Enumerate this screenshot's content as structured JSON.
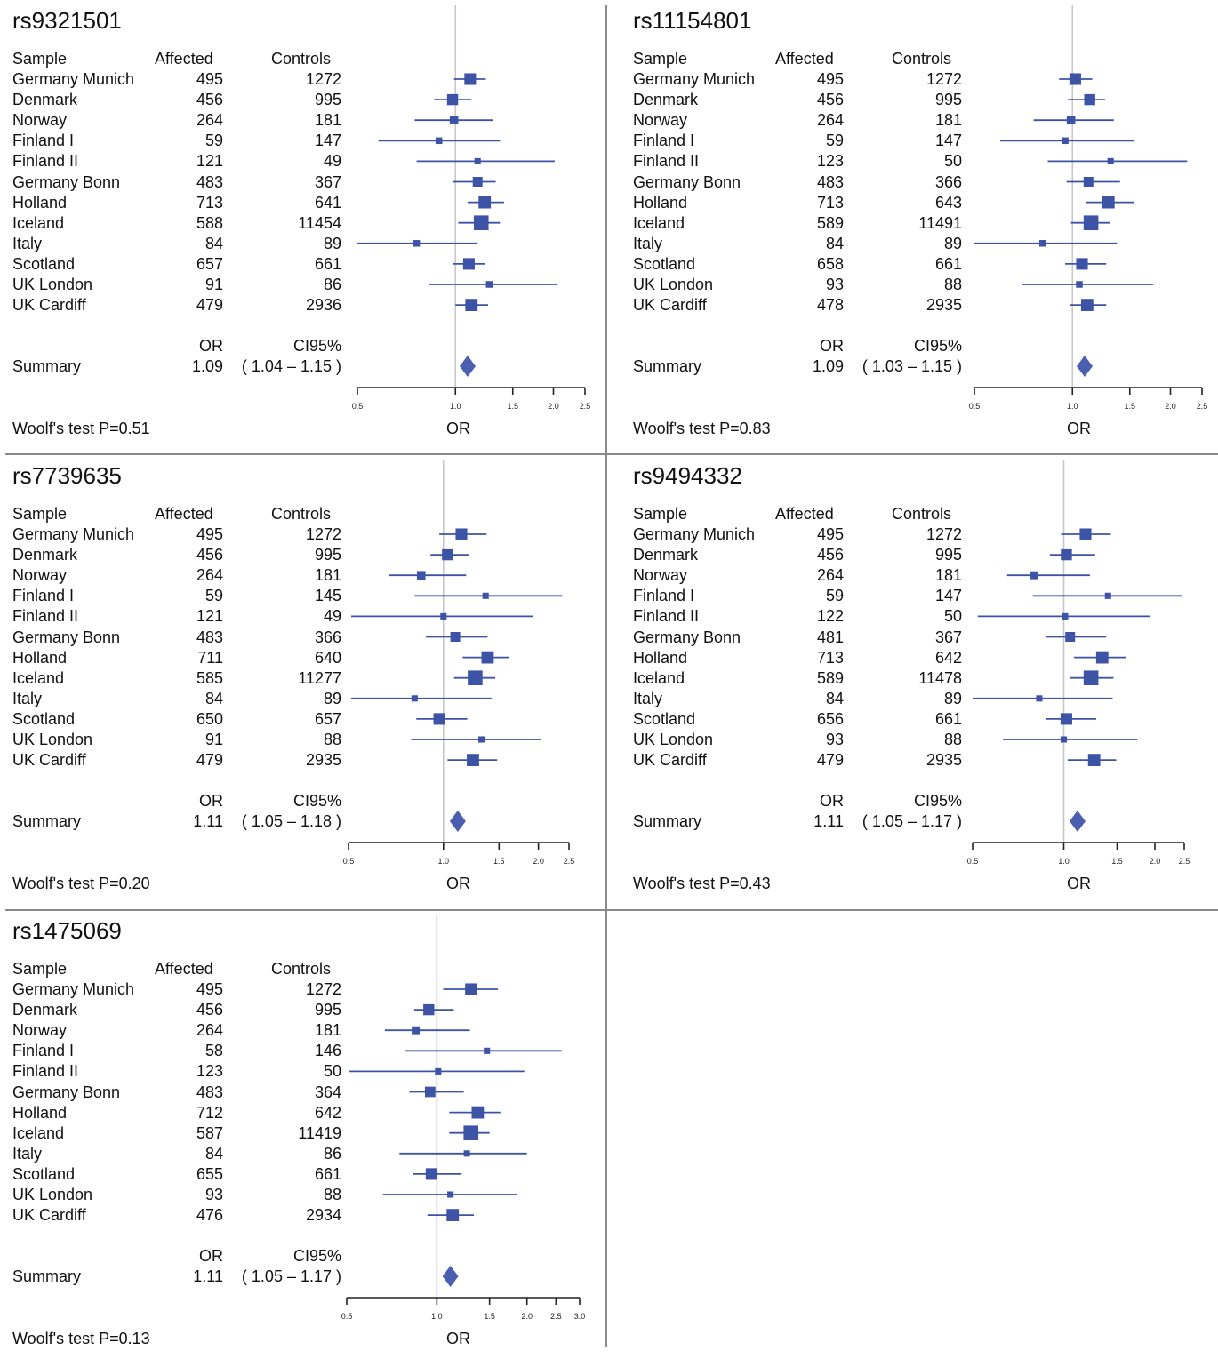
{
  "labels": {
    "sample": "Sample",
    "affected": "Affected",
    "controls": "Controls",
    "or": "OR",
    "ci": "CI95%",
    "summary": "Summary",
    "xlabel": "OR"
  },
  "chart_data": [
    {
      "type": "forest",
      "snp": "rs9321501",
      "woolf": "Woolf's test P=0.51",
      "ticks": [
        "0.5",
        "1.0",
        "1.5",
        "2.0",
        "2.5"
      ],
      "tick_values": [
        0.5,
        1.0,
        1.5,
        2.0,
        2.5
      ],
      "xlim": [
        0.5,
        2.5
      ],
      "log_scale": true,
      "rows": [
        {
          "sample": "Germany Munich",
          "affected": "495",
          "controls": "1272",
          "or": 1.11,
          "lo": 0.99,
          "hi": 1.24,
          "weight": 0.65
        },
        {
          "sample": "Denmark",
          "affected": "456",
          "controls": "995",
          "or": 0.98,
          "lo": 0.86,
          "hi": 1.12,
          "weight": 0.6
        },
        {
          "sample": "Norway",
          "affected": "264",
          "controls": "181",
          "or": 0.99,
          "lo": 0.75,
          "hi": 1.3,
          "weight": 0.4
        },
        {
          "sample": "Finland I",
          "affected": "59",
          "controls": "147",
          "or": 0.89,
          "lo": 0.58,
          "hi": 1.37,
          "weight": 0.25
        },
        {
          "sample": "Finland II",
          "affected": "121",
          "controls": "49",
          "or": 1.17,
          "lo": 0.76,
          "hi": 2.02,
          "weight": 0.22
        },
        {
          "sample": "Germany Bonn",
          "affected": "483",
          "controls": "367",
          "or": 1.17,
          "lo": 0.98,
          "hi": 1.33,
          "weight": 0.5
        },
        {
          "sample": "Holland",
          "affected": "713",
          "controls": "641",
          "or": 1.23,
          "lo": 1.09,
          "hi": 1.41,
          "weight": 0.7
        },
        {
          "sample": "Iceland",
          "affected": "588",
          "controls": "11454",
          "or": 1.2,
          "lo": 1.02,
          "hi": 1.37,
          "weight": 0.9
        },
        {
          "sample": "Italy",
          "affected": "84",
          "controls": "89",
          "or": 0.76,
          "lo": 0.5,
          "hi": 1.17,
          "weight": 0.25
        },
        {
          "sample": "Scotland",
          "affected": "657",
          "controls": "661",
          "or": 1.1,
          "lo": 0.98,
          "hi": 1.23,
          "weight": 0.65
        },
        {
          "sample": "UK London",
          "affected": "91",
          "controls": "86",
          "or": 1.27,
          "lo": 0.83,
          "hi": 2.06,
          "weight": 0.25
        },
        {
          "sample": "UK Cardiff",
          "affected": "479",
          "controls": "2936",
          "or": 1.12,
          "lo": 1.0,
          "hi": 1.26,
          "weight": 0.7
        }
      ],
      "summary": {
        "or": "1.09",
        "ci": "( 1.04 – 1.15 )",
        "or_value": 1.09,
        "lo": 1.04,
        "hi": 1.15
      }
    },
    {
      "type": "forest",
      "snp": "rs11154801",
      "woolf": "Woolf's test P=0.83",
      "ticks": [
        "0.5",
        "1.0",
        "1.5",
        "2.0",
        "2.5"
      ],
      "tick_values": [
        0.5,
        1.0,
        1.5,
        2.0,
        2.5
      ],
      "xlim": [
        0.5,
        2.5
      ],
      "log_scale": true,
      "rows": [
        {
          "sample": "Germany Munich",
          "affected": "495",
          "controls": "1272",
          "or": 1.02,
          "lo": 0.91,
          "hi": 1.15,
          "weight": 0.65
        },
        {
          "sample": "Denmark",
          "affected": "456",
          "controls": "995",
          "or": 1.13,
          "lo": 0.97,
          "hi": 1.26,
          "weight": 0.6
        },
        {
          "sample": "Norway",
          "affected": "264",
          "controls": "181",
          "or": 0.99,
          "lo": 0.76,
          "hi": 1.34,
          "weight": 0.4
        },
        {
          "sample": "Finland I",
          "affected": "59",
          "controls": "147",
          "or": 0.95,
          "lo": 0.6,
          "hi": 1.55,
          "weight": 0.25
        },
        {
          "sample": "Finland II",
          "affected": "123",
          "controls": "50",
          "or": 1.31,
          "lo": 0.84,
          "hi": 2.25,
          "weight": 0.22
        },
        {
          "sample": "Germany Bonn",
          "affected": "483",
          "controls": "366",
          "or": 1.12,
          "lo": 0.96,
          "hi": 1.4,
          "weight": 0.5
        },
        {
          "sample": "Holland",
          "affected": "713",
          "controls": "643",
          "or": 1.29,
          "lo": 1.1,
          "hi": 1.55,
          "weight": 0.7
        },
        {
          "sample": "Iceland",
          "affected": "589",
          "controls": "11491",
          "or": 1.14,
          "lo": 0.99,
          "hi": 1.3,
          "weight": 0.9
        },
        {
          "sample": "Italy",
          "affected": "84",
          "controls": "89",
          "or": 0.81,
          "lo": 0.5,
          "hi": 1.37,
          "weight": 0.25
        },
        {
          "sample": "Scotland",
          "affected": "658",
          "controls": "661",
          "or": 1.07,
          "lo": 0.95,
          "hi": 1.27,
          "weight": 0.65
        },
        {
          "sample": "UK London",
          "affected": "93",
          "controls": "88",
          "or": 1.05,
          "lo": 0.7,
          "hi": 1.77,
          "weight": 0.25
        },
        {
          "sample": "UK Cardiff",
          "affected": "478",
          "controls": "2935",
          "or": 1.11,
          "lo": 0.98,
          "hi": 1.27,
          "weight": 0.7
        }
      ],
      "summary": {
        "or": "1.09",
        "ci": "( 1.03 – 1.15 )",
        "or_value": 1.09,
        "lo": 1.03,
        "hi": 1.15
      }
    },
    {
      "type": "forest",
      "snp": "rs7739635",
      "woolf": "Woolf's test P=0.20",
      "ticks": [
        "0.5",
        "1.0",
        "1.5",
        "2.0",
        "2.5"
      ],
      "tick_values": [
        0.5,
        1.0,
        1.5,
        2.0,
        2.5
      ],
      "xlim": [
        0.5,
        2.5
      ],
      "log_scale": true,
      "rows": [
        {
          "sample": "Germany Munich",
          "affected": "495",
          "controls": "1272",
          "or": 1.14,
          "lo": 0.97,
          "hi": 1.37,
          "weight": 0.65
        },
        {
          "sample": "Denmark",
          "affected": "456",
          "controls": "995",
          "or": 1.03,
          "lo": 0.91,
          "hi": 1.2,
          "weight": 0.6
        },
        {
          "sample": "Norway",
          "affected": "264",
          "controls": "181",
          "or": 0.85,
          "lo": 0.67,
          "hi": 1.18,
          "weight": 0.4
        },
        {
          "sample": "Finland I",
          "affected": "59",
          "controls": "145",
          "or": 1.36,
          "lo": 0.81,
          "hi": 2.38,
          "weight": 0.22
        },
        {
          "sample": "Finland II",
          "affected": "121",
          "controls": "49",
          "or": 1.0,
          "lo": 0.51,
          "hi": 1.92,
          "weight": 0.22
        },
        {
          "sample": "Germany Bonn",
          "affected": "483",
          "controls": "366",
          "or": 1.09,
          "lo": 0.88,
          "hi": 1.38,
          "weight": 0.5
        },
        {
          "sample": "Holland",
          "affected": "711",
          "controls": "640",
          "or": 1.38,
          "lo": 1.15,
          "hi": 1.61,
          "weight": 0.7
        },
        {
          "sample": "Iceland",
          "affected": "585",
          "controls": "11277",
          "or": 1.26,
          "lo": 1.08,
          "hi": 1.46,
          "weight": 0.9
        },
        {
          "sample": "Italy",
          "affected": "84",
          "controls": "89",
          "or": 0.81,
          "lo": 0.51,
          "hi": 1.42,
          "weight": 0.22
        },
        {
          "sample": "Scotland",
          "affected": "650",
          "controls": "657",
          "or": 0.97,
          "lo": 0.82,
          "hi": 1.19,
          "weight": 0.65
        },
        {
          "sample": "UK London",
          "affected": "91",
          "controls": "88",
          "or": 1.32,
          "lo": 0.79,
          "hi": 2.03,
          "weight": 0.22
        },
        {
          "sample": "UK Cardiff",
          "affected": "479",
          "controls": "2935",
          "or": 1.24,
          "lo": 1.03,
          "hi": 1.48,
          "weight": 0.7
        }
      ],
      "summary": {
        "or": "1.11",
        "ci": "( 1.05 – 1.18 )",
        "or_value": 1.11,
        "lo": 1.05,
        "hi": 1.18
      }
    },
    {
      "type": "forest",
      "snp": "rs9494332",
      "woolf": "Woolf's test P=0.43",
      "ticks": [
        "0.5",
        "1.0",
        "1.5",
        "2.0",
        "2.5"
      ],
      "tick_values": [
        0.5,
        1.0,
        1.5,
        2.0,
        2.5
      ],
      "xlim": [
        0.5,
        2.5
      ],
      "log_scale": true,
      "rows": [
        {
          "sample": "Germany Munich",
          "affected": "495",
          "controls": "1272",
          "or": 1.18,
          "lo": 0.98,
          "hi": 1.43,
          "weight": 0.65
        },
        {
          "sample": "Denmark",
          "affected": "456",
          "controls": "995",
          "or": 1.02,
          "lo": 0.9,
          "hi": 1.27,
          "weight": 0.6
        },
        {
          "sample": "Norway",
          "affected": "264",
          "controls": "181",
          "or": 0.8,
          "lo": 0.65,
          "hi": 1.22,
          "weight": 0.35
        },
        {
          "sample": "Finland I",
          "affected": "59",
          "controls": "147",
          "or": 1.4,
          "lo": 0.79,
          "hi": 2.46,
          "weight": 0.22
        },
        {
          "sample": "Finland II",
          "affected": "122",
          "controls": "50",
          "or": 1.01,
          "lo": 0.52,
          "hi": 1.93,
          "weight": 0.22
        },
        {
          "sample": "Germany Bonn",
          "affected": "481",
          "controls": "367",
          "or": 1.05,
          "lo": 0.87,
          "hi": 1.38,
          "weight": 0.5
        },
        {
          "sample": "Holland",
          "affected": "713",
          "controls": "642",
          "or": 1.34,
          "lo": 1.08,
          "hi": 1.6,
          "weight": 0.7
        },
        {
          "sample": "Iceland",
          "affected": "589",
          "controls": "11478",
          "or": 1.23,
          "lo": 1.05,
          "hi": 1.46,
          "weight": 0.9
        },
        {
          "sample": "Italy",
          "affected": "84",
          "controls": "89",
          "or": 0.83,
          "lo": 0.5,
          "hi": 1.45,
          "weight": 0.22
        },
        {
          "sample": "Scotland",
          "affected": "656",
          "controls": "661",
          "or": 1.02,
          "lo": 0.87,
          "hi": 1.28,
          "weight": 0.65
        },
        {
          "sample": "UK London",
          "affected": "93",
          "controls": "88",
          "or": 1.0,
          "lo": 0.63,
          "hi": 1.75,
          "weight": 0.22
        },
        {
          "sample": "UK Cardiff",
          "affected": "479",
          "controls": "2935",
          "or": 1.26,
          "lo": 1.03,
          "hi": 1.49,
          "weight": 0.7
        }
      ],
      "summary": {
        "or": "1.11",
        "ci": "( 1.05 – 1.17 )",
        "or_value": 1.11,
        "lo": 1.05,
        "hi": 1.17
      }
    },
    {
      "type": "forest",
      "snp": "rs1475069",
      "woolf": "Woolf's test P=0.13",
      "ticks": [
        "0.5",
        "1.0",
        "1.5",
        "2.0",
        "2.5",
        "3.0"
      ],
      "tick_values": [
        0.5,
        1.0,
        1.5,
        2.0,
        2.5,
        3.0
      ],
      "xlim": [
        0.5,
        3.0
      ],
      "log_scale": true,
      "rows": [
        {
          "sample": "Germany Munich",
          "affected": "495",
          "controls": "1272",
          "or": 1.3,
          "lo": 1.05,
          "hi": 1.6,
          "weight": 0.65
        },
        {
          "sample": "Denmark",
          "affected": "456",
          "controls": "995",
          "or": 0.94,
          "lo": 0.84,
          "hi": 1.14,
          "weight": 0.6
        },
        {
          "sample": "Norway",
          "affected": "264",
          "controls": "181",
          "or": 0.85,
          "lo": 0.67,
          "hi": 1.29,
          "weight": 0.35
        },
        {
          "sample": "Finland I",
          "affected": "58",
          "controls": "146",
          "or": 1.47,
          "lo": 0.78,
          "hi": 2.61,
          "weight": 0.22
        },
        {
          "sample": "Finland II",
          "affected": "123",
          "controls": "50",
          "or": 1.01,
          "lo": 0.51,
          "hi": 1.96,
          "weight": 0.22
        },
        {
          "sample": "Germany Bonn",
          "affected": "483",
          "controls": "364",
          "or": 0.95,
          "lo": 0.81,
          "hi": 1.23,
          "weight": 0.55
        },
        {
          "sample": "Holland",
          "affected": "712",
          "controls": "642",
          "or": 1.37,
          "lo": 1.1,
          "hi": 1.63,
          "weight": 0.7
        },
        {
          "sample": "Iceland",
          "affected": "587",
          "controls": "11419",
          "or": 1.3,
          "lo": 1.1,
          "hi": 1.5,
          "weight": 0.9
        },
        {
          "sample": "Italy",
          "affected": "84",
          "controls": "86",
          "or": 1.26,
          "lo": 0.75,
          "hi": 2.0,
          "weight": 0.22
        },
        {
          "sample": "Scotland",
          "affected": "655",
          "controls": "661",
          "or": 0.96,
          "lo": 0.83,
          "hi": 1.21,
          "weight": 0.65
        },
        {
          "sample": "UK London",
          "affected": "93",
          "controls": "88",
          "or": 1.11,
          "lo": 0.66,
          "hi": 1.85,
          "weight": 0.22
        },
        {
          "sample": "UK Cardiff",
          "affected": "476",
          "controls": "2934",
          "or": 1.13,
          "lo": 0.93,
          "hi": 1.33,
          "weight": 0.7
        }
      ],
      "summary": {
        "or": "1.11",
        "ci": "( 1.05 – 1.17 )",
        "or_value": 1.11,
        "lo": 1.05,
        "hi": 1.17
      }
    }
  ],
  "colors": {
    "marker": "#3d54a6",
    "summary": "#4a5fb0",
    "refline": "#c8c8c8",
    "axis": "#222222",
    "divider": "#8a8a8a"
  }
}
